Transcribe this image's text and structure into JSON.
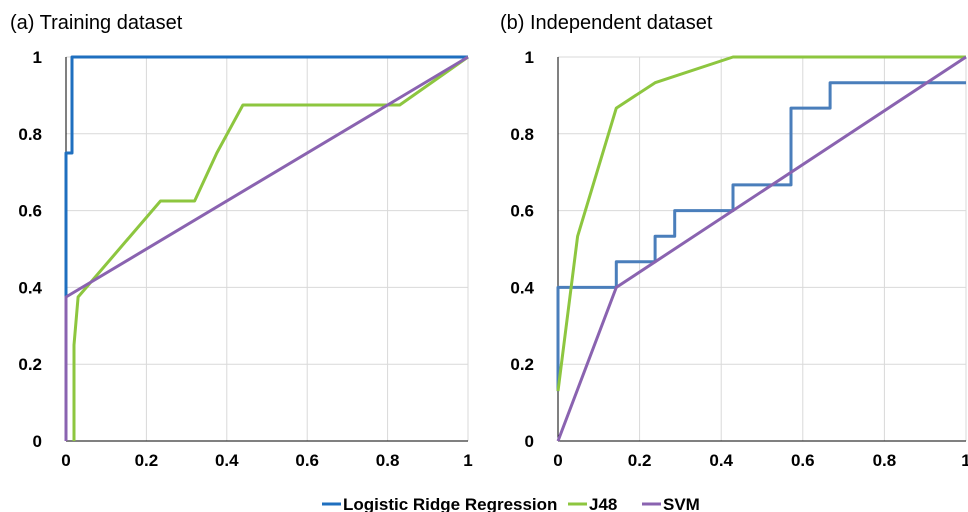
{
  "chart_data": [
    {
      "type": "line",
      "title": "(a) Training dataset",
      "xlabel": "",
      "ylabel": "",
      "xlim": [
        0,
        1
      ],
      "ylim": [
        0,
        1
      ],
      "xticks": [
        "0",
        "0.2",
        "0.4",
        "0.6",
        "0.8",
        "1"
      ],
      "yticks": [
        "0",
        "0.2",
        "0.4",
        "0.6",
        "0.8",
        "1"
      ],
      "grid": true,
      "series": [
        {
          "name": "Logistic Ridge Regression",
          "color": "#1f6fbf",
          "points": [
            [
              0,
              0
            ],
            [
              0,
              0.75
            ],
            [
              0.015,
              0.75
            ],
            [
              0.015,
              1
            ],
            [
              1,
              1
            ]
          ]
        },
        {
          "name": "J48",
          "color": "#8dc63f",
          "points": [
            [
              0.02,
              0
            ],
            [
              0.02,
              0.25
            ],
            [
              0.03,
              0.375
            ],
            [
              0.235,
              0.625
            ],
            [
              0.32,
              0.625
            ],
            [
              0.375,
              0.75
            ],
            [
              0.44,
              0.875
            ],
            [
              0.83,
              0.875
            ],
            [
              1,
              1
            ]
          ]
        },
        {
          "name": "SVM",
          "color": "#8a63b0",
          "points": [
            [
              0,
              0
            ],
            [
              0,
              0.375
            ],
            [
              1,
              1
            ]
          ]
        }
      ]
    },
    {
      "type": "line",
      "title": "(b) Independent dataset",
      "xlabel": "",
      "ylabel": "",
      "xlim": [
        0,
        1
      ],
      "ylim": [
        0,
        1
      ],
      "xticks": [
        "0",
        "0.2",
        "0.4",
        "0.6",
        "0.8",
        "1"
      ],
      "yticks": [
        "0",
        "0.2",
        "0.4",
        "0.6",
        "0.8",
        "1"
      ],
      "grid": true,
      "series": [
        {
          "name": "Logistic Ridge Regression",
          "color": "#4a7ebb",
          "points": [
            [
              0,
              0.13
            ],
            [
              0,
              0.4
            ],
            [
              0.143,
              0.4
            ],
            [
              0.143,
              0.467
            ],
            [
              0.238,
              0.467
            ],
            [
              0.238,
              0.533
            ],
            [
              0.286,
              0.533
            ],
            [
              0.286,
              0.6
            ],
            [
              0.429,
              0.6
            ],
            [
              0.429,
              0.667
            ],
            [
              0.571,
              0.667
            ],
            [
              0.571,
              0.867
            ],
            [
              0.667,
              0.867
            ],
            [
              0.667,
              0.933
            ],
            [
              1,
              0.933
            ]
          ]
        },
        {
          "name": "J48",
          "color": "#8dc63f",
          "points": [
            [
              0,
              0.13
            ],
            [
              0.048,
              0.533
            ],
            [
              0.143,
              0.867
            ],
            [
              0.238,
              0.933
            ],
            [
              0.429,
              1
            ],
            [
              1,
              1
            ]
          ]
        },
        {
          "name": "SVM",
          "color": "#8a63b0",
          "points": [
            [
              0,
              0
            ],
            [
              0.143,
              0.4
            ],
            [
              1,
              1
            ]
          ]
        }
      ]
    }
  ],
  "legend": {
    "placement": "bottom",
    "items": [
      {
        "label": "Logistic Ridge Regression",
        "color": "#1f6fbf"
      },
      {
        "label": "J48",
        "color": "#8dc63f"
      },
      {
        "label": "SVM",
        "color": "#8a63b0"
      }
    ]
  }
}
